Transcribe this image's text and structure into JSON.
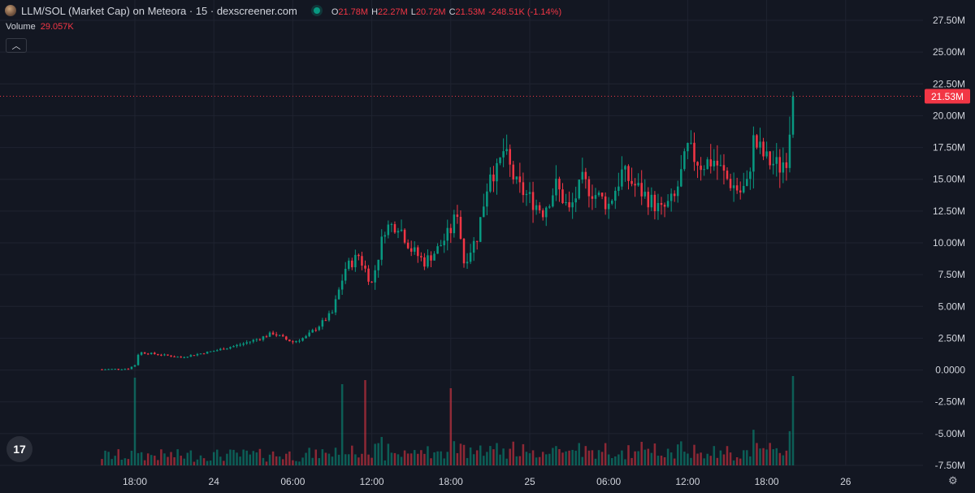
{
  "header": {
    "title": "LLM/SOL (Market Cap) on Meteora · 15 · dexscreener.com",
    "ohlc": [
      {
        "k": "O",
        "v": "21.78M"
      },
      {
        "k": "H",
        "v": "22.27M"
      },
      {
        "k": "L",
        "v": "20.72M"
      },
      {
        "k": "C",
        "v": "21.53M"
      },
      {
        "k": "",
        "v": "-248.51K (-1.14%)"
      }
    ]
  },
  "volume": {
    "label": "Volume",
    "value": "29.057K"
  },
  "collapse_icon": "chevron-up-icon",
  "price_label": "21.53M",
  "colors": {
    "up": "#089981",
    "down": "#f23645",
    "bg": "#131722",
    "grid": "#1f2330"
  },
  "chart_data": {
    "type": "candlestick",
    "y_ticks": [
      "27.50M",
      "25.00M",
      "22.50M",
      "20.00M",
      "17.50M",
      "15.00M",
      "12.50M",
      "10.00M",
      "7.50M",
      "5.00M",
      "2.50M",
      "0.0000",
      "-2.50M",
      "-5.00M",
      "-7.50M"
    ],
    "y_tick_values": [
      27.5,
      25,
      22.5,
      20,
      17.5,
      15,
      12.5,
      10,
      7.5,
      5,
      2.5,
      0,
      -2.5,
      -5,
      -7.5
    ],
    "x_ticks": [
      "18:00",
      "24",
      "06:00",
      "12:00",
      "18:00",
      "25",
      "06:00",
      "12:00",
      "18:00",
      "26"
    ],
    "x_tick_hours": [
      18,
      24,
      30,
      36,
      42,
      48,
      54,
      60,
      66,
      72
    ],
    "ylim": [
      -7.5,
      27.5
    ],
    "current_price": 21.53,
    "candles_start_hour": 15.5,
    "candle_interval_hours": 0.25,
    "close_keypoints": [
      [
        15.5,
        0.05
      ],
      [
        17.5,
        0.1
      ],
      [
        18.0,
        0.4
      ],
      [
        18.3,
        1.4
      ],
      [
        20.0,
        1.2
      ],
      [
        21.5,
        1.0
      ],
      [
        22.0,
        1.1
      ],
      [
        24.0,
        1.5
      ],
      [
        26.0,
        2.0
      ],
      [
        27.5,
        2.5
      ],
      [
        28.5,
        2.9
      ],
      [
        29.5,
        2.4
      ],
      [
        30.0,
        2.2
      ],
      [
        31.0,
        2.6
      ],
      [
        32.0,
        3.5
      ],
      [
        33.0,
        4.5
      ],
      [
        34.0,
        8.0
      ],
      [
        35.0,
        9.0
      ],
      [
        36.0,
        6.8
      ],
      [
        37.0,
        11.2
      ],
      [
        38.0,
        11.5
      ],
      [
        39.0,
        9.5
      ],
      [
        40.0,
        8.5
      ],
      [
        41.0,
        9.5
      ],
      [
        42.0,
        11.0
      ],
      [
        42.5,
        12.5
      ],
      [
        43.0,
        8.5
      ],
      [
        44.0,
        10.5
      ],
      [
        45.0,
        15.8
      ],
      [
        45.5,
        15.5
      ],
      [
        46.0,
        17.2
      ],
      [
        47.0,
        14.5
      ],
      [
        48.0,
        13.5
      ],
      [
        48.5,
        13.0
      ],
      [
        49.0,
        12.5
      ],
      [
        50.0,
        14.5
      ],
      [
        51.0,
        12.5
      ],
      [
        52.0,
        14.8
      ],
      [
        53.0,
        13.8
      ],
      [
        54.0,
        13.0
      ],
      [
        55.0,
        15.5
      ],
      [
        56.0,
        14.5
      ],
      [
        57.0,
        13.5
      ],
      [
        58.0,
        12.5
      ],
      [
        59.0,
        13.5
      ],
      [
        60.0,
        17.3
      ],
      [
        61.0,
        16.2
      ],
      [
        62.0,
        16.5
      ],
      [
        63.0,
        15.0
      ],
      [
        64.0,
        14.0
      ],
      [
        64.5,
        14.5
      ],
      [
        65.0,
        18.0
      ],
      [
        66.0,
        16.5
      ],
      [
        67.0,
        16.0
      ],
      [
        67.5,
        16.8
      ],
      [
        68.0,
        21.53
      ]
    ],
    "volume_spikes": [
      {
        "x": 18.0,
        "h": 108
      },
      {
        "x": 33.75,
        "h": 100
      },
      {
        "x": 35.5,
        "h": 105
      },
      {
        "x": 42.0,
        "h": 95
      },
      {
        "x": 68.0,
        "h": 110
      }
    ]
  }
}
